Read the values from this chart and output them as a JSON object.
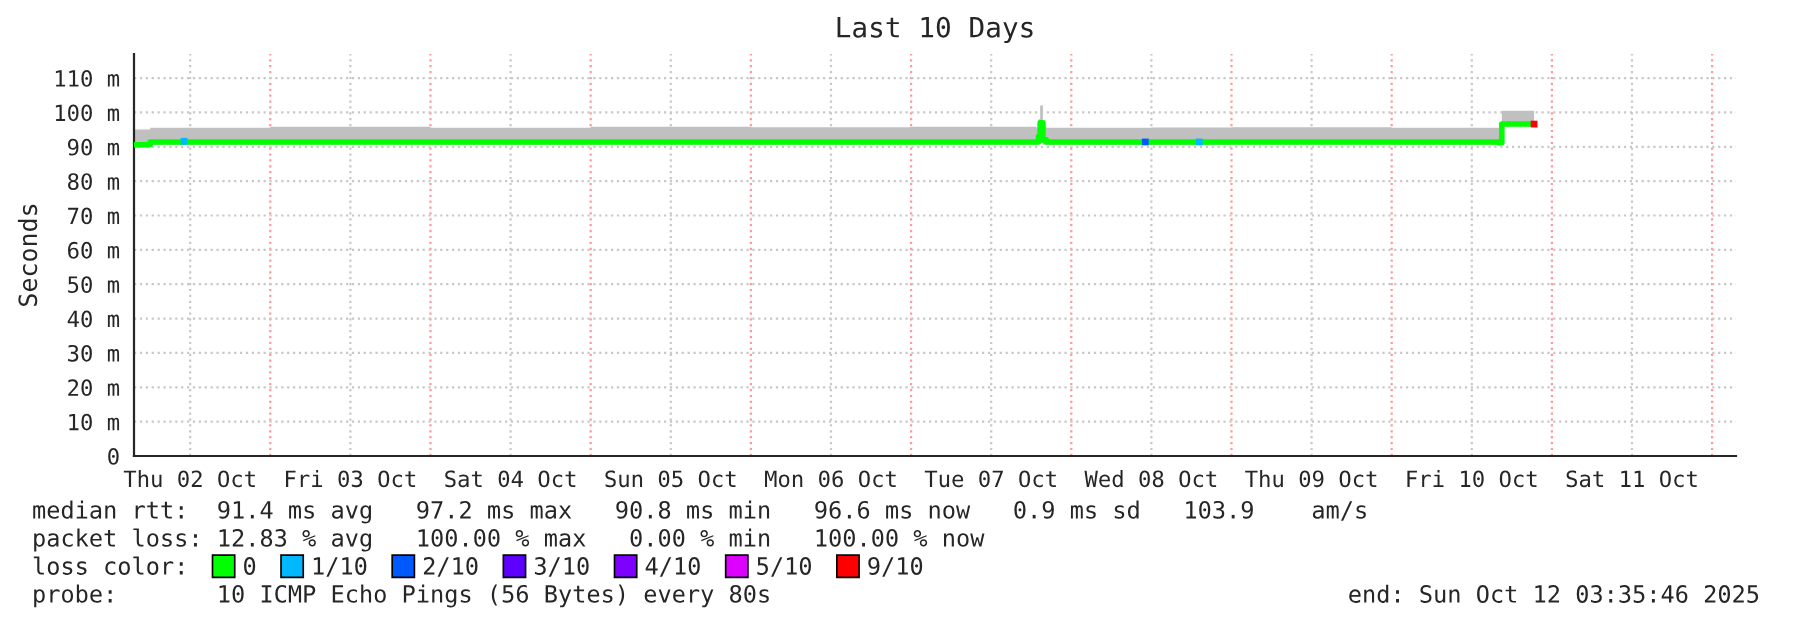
{
  "chart_data": {
    "type": "line",
    "title": "Last 10 Days",
    "ylabel": "Seconds",
    "xlim": [
      "2025-10-02T03:35",
      "2025-10-12T03:35"
    ],
    "xticks": [
      {
        "value": "2025-10-02T12:00",
        "label": "Thu 02 Oct"
      },
      {
        "value": "2025-10-03T00:00",
        "label": null
      },
      {
        "value": "2025-10-03T12:00",
        "label": "Fri 03 Oct"
      },
      {
        "value": "2025-10-04T00:00",
        "label": null
      },
      {
        "value": "2025-10-04T12:00",
        "label": "Sat 04 Oct"
      },
      {
        "value": "2025-10-05T00:00",
        "label": null
      },
      {
        "value": "2025-10-05T12:00",
        "label": "Sun 05 Oct"
      },
      {
        "value": "2025-10-06T00:00",
        "label": null
      },
      {
        "value": "2025-10-06T12:00",
        "label": "Mon 06 Oct"
      },
      {
        "value": "2025-10-07T00:00",
        "label": null
      },
      {
        "value": "2025-10-07T12:00",
        "label": "Tue 07 Oct"
      },
      {
        "value": "2025-10-08T00:00",
        "label": null
      },
      {
        "value": "2025-10-08T12:00",
        "label": "Wed 08 Oct"
      },
      {
        "value": "2025-10-09T00:00",
        "label": null
      },
      {
        "value": "2025-10-09T12:00",
        "label": "Thu 09 Oct"
      },
      {
        "value": "2025-10-10T00:00",
        "label": null
      },
      {
        "value": "2025-10-10T12:00",
        "label": "Fri 10 Oct"
      },
      {
        "value": "2025-10-11T00:00",
        "label": null
      },
      {
        "value": "2025-10-11T12:00",
        "label": "Sat 11 Oct"
      },
      {
        "value": "2025-10-12T00:00",
        "label": null
      }
    ],
    "ylim": [
      0,
      117
    ],
    "yticks": [
      0,
      {
        "value": 10,
        "label": "10 m"
      },
      {
        "value": 20,
        "label": "20 m"
      },
      {
        "value": 30,
        "label": "30 m"
      },
      {
        "value": 40,
        "label": "40 m"
      },
      {
        "value": 50,
        "label": "50 m"
      },
      {
        "value": 60,
        "label": "60 m"
      },
      {
        "value": 70,
        "label": "70 m"
      },
      {
        "value": 80,
        "label": "80 m"
      },
      {
        "value": 90,
        "label": "90 m"
      },
      {
        "value": 100,
        "label": "100 m"
      },
      {
        "value": 110,
        "label": "110 m"
      }
    ],
    "grid": true,
    "legend": "bottom",
    "legend_title": "loss color:",
    "line_style": "solid",
    "marker": "none",
    "series": [
      {
        "name": "0",
        "color": "#00ff00",
        "x": [
          "2025-10-02T03:35",
          "2025-10-02T06:00",
          "2025-10-03T00:00",
          "2025-10-04T00:00",
          "2025-10-05T00:00",
          "2025-10-06T00:00",
          "2025-10-07T00:00",
          "2025-10-07T18:45",
          "2025-10-07T19:05",
          "2025-10-07T19:20",
          "2025-10-07T19:45",
          "2025-10-07T20:15",
          "2025-10-08T12:00",
          "2025-10-09T00:00",
          "2025-10-10T00:00",
          "2025-10-10T16:00",
          "2025-10-10T16:30",
          "2025-10-10T21:20"
        ],
        "values": [
          90.6,
          91.4,
          91.4,
          91.4,
          91.4,
          91.4,
          91.4,
          91.4,
          93,
          97,
          92,
          91.4,
          91.4,
          91.4,
          91.4,
          91.2,
          96.6,
          96.6
        ],
        "lower": [
          90.5,
          90.5,
          90.6,
          90.5,
          90.6,
          90.5,
          90.6,
          90.6,
          90.8,
          91.2,
          90.6,
          90.5,
          90.5,
          90.6,
          90.5,
          90.5,
          96,
          96
        ],
        "upper": [
          95,
          95.5,
          95.8,
          95.5,
          95.8,
          95.7,
          95.8,
          95.6,
          98,
          102,
          95.8,
          95.5,
          95.6,
          95.7,
          95.5,
          95.5,
          100.5,
          100.5
        ]
      },
      {
        "name": "1/10",
        "type": "scatter",
        "marker": "square",
        "color": "#00b8ff",
        "x": [
          "2025-10-02T11:05",
          "2025-10-08T19:10"
        ],
        "values": [
          91.6,
          91.4
        ]
      },
      {
        "name": "2/10",
        "type": "scatter",
        "marker": "square",
        "color": "#0059ff",
        "x": [
          "2025-10-08T11:05"
        ],
        "values": [
          91.4
        ]
      },
      {
        "name": "3/10",
        "type": "scatter",
        "color": "#5e00ff"
      },
      {
        "name": "4/10",
        "type": "scatter",
        "color": "#7e00ff"
      },
      {
        "name": "5/10",
        "type": "scatter",
        "color": "#dd00ff"
      },
      {
        "name": "9/10",
        "type": "scatter",
        "marker": "square",
        "color": "#ff0000",
        "x": [
          "2025-10-10T21:20"
        ],
        "values": [
          96.6
        ]
      }
    ],
    "annotations": [
      "median rtt:  91.4 ms avg   97.2 ms max   90.8 ms min   96.6 ms now   0.9 ms sd   103.9    am/s",
      "packet loss: 12.83 % avg   100.00 % max   0.00 % min   100.00 % now",
      "probe:       10 ICMP Echo Pings (56 Bytes) every 80s",
      "end: Sun Oct 12 03:35:46 2025"
    ]
  }
}
